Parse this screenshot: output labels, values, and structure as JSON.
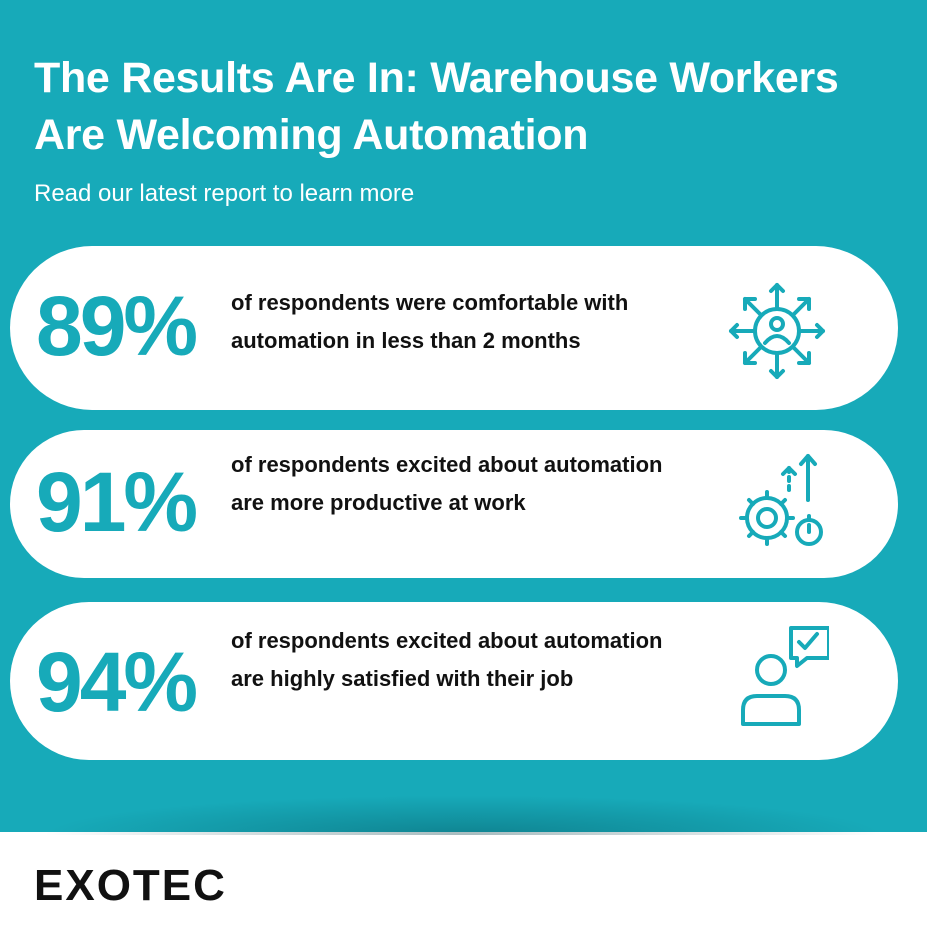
{
  "header": {
    "title": "The Results Are In: Warehouse Workers Are Welcoming Automation",
    "subtitle": "Read our latest report to learn more"
  },
  "stats": [
    {
      "value": "89%",
      "text": "of respondents were comfortable with automation in less than 2 months",
      "icon": "person-network-icon"
    },
    {
      "value": "91%",
      "text": "of respondents excited about automation are more productive at work",
      "icon": "gears-productivity-icon"
    },
    {
      "value": "94%",
      "text": "of respondents excited about automation are highly satisfied with their job",
      "icon": "person-checkmark-icon"
    }
  ],
  "footer": {
    "logo": "EXOTEC"
  },
  "colors": {
    "accent": "#17aab9",
    "card": "#ffffff",
    "text": "#111111"
  }
}
